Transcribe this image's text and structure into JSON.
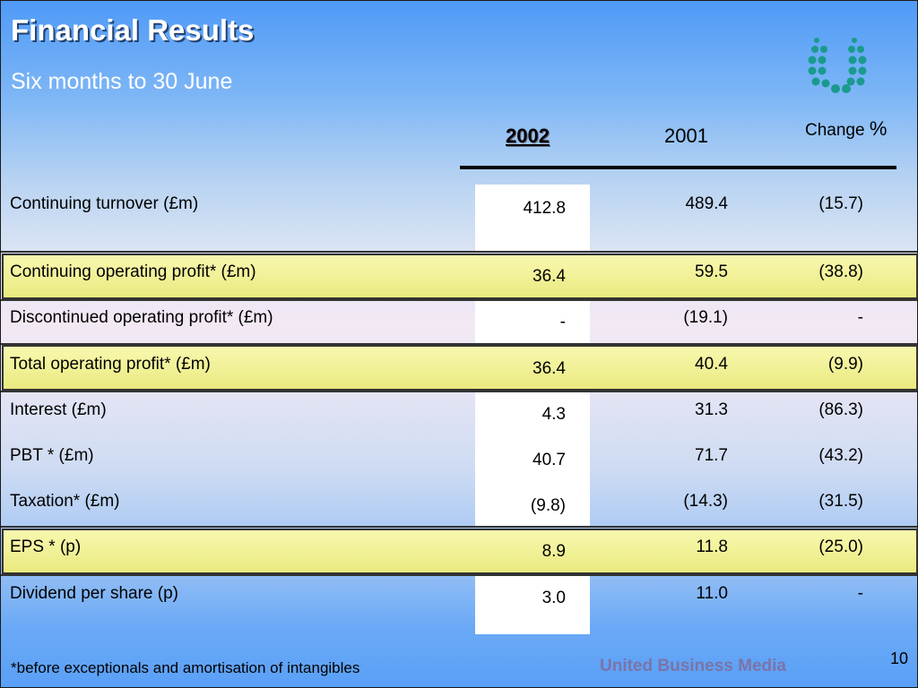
{
  "slide": {
    "title": "Financial Results",
    "subtitle": "Six months to 30 June",
    "columns": {
      "y2002": "2002",
      "y2001": "2001",
      "change": "Change",
      "change_unit": "%"
    },
    "rows": [
      {
        "label": "Continuing turnover (£m)",
        "v2002": "412.8",
        "v2001": "489.4",
        "change": "(15.7)",
        "highlight": false
      },
      {
        "label": "Continuing operating profit* (£m)",
        "v2002": "36.4",
        "v2001": "59.5",
        "change": "(38.8)",
        "highlight": true
      },
      {
        "label": "Discontinued operating profit* (£m)",
        "v2002": "-",
        "v2001": "(19.1)",
        "change": "-",
        "highlight": false
      },
      {
        "label": "Total operating profit* (£m)",
        "v2002": "36.4",
        "v2001": "40.4",
        "change": "(9.9)",
        "highlight": true
      },
      {
        "label": "Interest (£m)",
        "v2002": "4.3",
        "v2001": "31.3",
        "change": "(86.3)",
        "highlight": false
      },
      {
        "label": "PBT * (£m)",
        "v2002": "40.7",
        "v2001": "71.7",
        "change": "(43.2)",
        "highlight": false
      },
      {
        "label": "Taxation* (£m)",
        "v2002": "(9.8)",
        "v2001": "(14.3)",
        "change": "(31.5)",
        "highlight": false
      },
      {
        "label": "EPS * (p)",
        "v2002": "8.9",
        "v2001": "11.8",
        "change": "(25.0)",
        "highlight": true
      },
      {
        "label": "Dividend per share (p)",
        "v2002": "3.0",
        "v2001": "11.0",
        "change": "-",
        "highlight": false
      }
    ],
    "footnote": "*before exceptionals and amortisation of intangibles",
    "brand": "United Business Media",
    "page_number": "10"
  },
  "colors": {
    "highlight_band": "#f2f29a",
    "logo": "#1a9a8c",
    "brand_text": "#7a74a8"
  },
  "icons": {
    "logo": "dotted-u-logo-icon"
  }
}
